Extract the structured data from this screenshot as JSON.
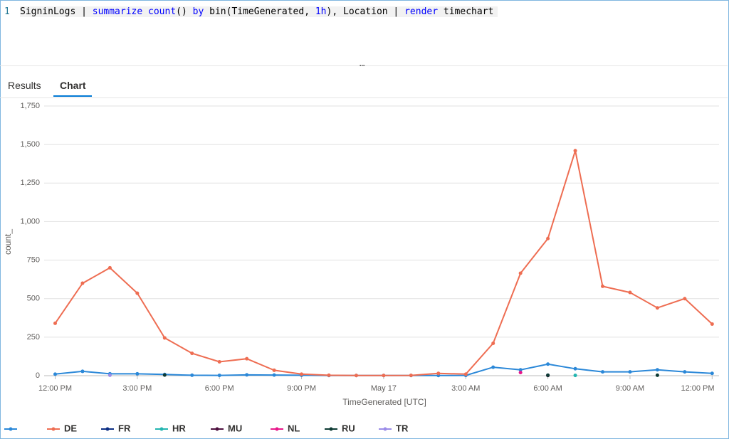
{
  "editor": {
    "line_number": "1",
    "tokens": [
      {
        "text": "SigninLogs | ",
        "color": "#000000"
      },
      {
        "text": "summarize",
        "color": "#0000ff"
      },
      {
        "text": " ",
        "color": "#000000"
      },
      {
        "text": "count",
        "color": "#0000ff"
      },
      {
        "text": "() ",
        "color": "#000000"
      },
      {
        "text": "by",
        "color": "#0000ff"
      },
      {
        "text": " bin(TimeGenerated, ",
        "color": "#000000"
      },
      {
        "text": "1h",
        "color": "#0000ff"
      },
      {
        "text": "), Location | ",
        "color": "#000000"
      },
      {
        "text": "render",
        "color": "#0000ff"
      },
      {
        "text": " timechart",
        "color": "#000000"
      }
    ]
  },
  "tabs": [
    "Results",
    "Chart"
  ],
  "chart_data": {
    "type": "line",
    "x_label": "TimeGenerated [UTC]",
    "y_label": "count_",
    "categories": [
      "12:00 PM",
      null,
      null,
      "3:00 PM",
      null,
      null,
      "6:00 PM",
      null,
      null,
      "9:00 PM",
      null,
      null,
      "May 17",
      null,
      null,
      "3:00 AM",
      null,
      null,
      "6:00 AM",
      null,
      null,
      "9:00 AM",
      null,
      null,
      "12:00 PM"
    ],
    "ylim": [
      0,
      1750
    ],
    "yticks": [
      0,
      250,
      500,
      750,
      {
        "value": 1000,
        "label": "1,000"
      },
      {
        "value": 1250,
        "label": "1,250"
      },
      {
        "value": 1500,
        "label": "1,500"
      },
      {
        "value": 1750,
        "label": "1,750"
      }
    ],
    "grid": true,
    "series": [
      {
        "name": null,
        "color": "#2b88d8",
        "values": [
          10,
          28,
          12,
          12,
          8,
          3,
          2,
          5,
          4,
          3,
          1,
          1,
          1,
          1,
          1,
          2,
          55,
          38,
          75,
          45,
          25,
          25,
          38,
          25,
          15
        ]
      },
      {
        "name": "DE",
        "color": "#ee6d52",
        "values": [
          340,
          600,
          700,
          535,
          245,
          145,
          90,
          110,
          35,
          10,
          3,
          1,
          1,
          2,
          15,
          10,
          210,
          665,
          890,
          1460,
          580,
          540,
          440,
          500,
          335
        ]
      },
      {
        "name": "FR",
        "color": "#0b2e84",
        "values": [
          null,
          null,
          null,
          null,
          null,
          null,
          null,
          null,
          null,
          null,
          null,
          null,
          null,
          null,
          null,
          null,
          null,
          null,
          3,
          null,
          null,
          null,
          null,
          null,
          null
        ]
      },
      {
        "name": "HR",
        "color": "#22b5b0",
        "values": [
          null,
          null,
          null,
          null,
          null,
          null,
          null,
          null,
          null,
          null,
          null,
          null,
          null,
          null,
          null,
          null,
          null,
          null,
          null,
          2,
          null,
          null,
          null,
          null,
          null
        ]
      },
      {
        "name": "MU",
        "color": "#4d0f3e",
        "values": [
          null,
          null,
          null,
          null,
          null,
          null,
          null,
          null,
          null,
          null,
          null,
          null,
          null,
          null,
          null,
          null,
          null,
          null,
          1,
          null,
          null,
          null,
          null,
          null,
          null
        ]
      },
      {
        "name": "NL",
        "color": "#e8178a",
        "values": [
          null,
          null,
          null,
          null,
          null,
          null,
          null,
          null,
          null,
          null,
          null,
          null,
          null,
          null,
          null,
          null,
          null,
          20,
          null,
          null,
          null,
          null,
          null,
          null,
          null
        ]
      },
      {
        "name": "RU",
        "color": "#0d3a33",
        "values": [
          null,
          null,
          null,
          null,
          4,
          null,
          null,
          null,
          null,
          null,
          null,
          null,
          null,
          null,
          null,
          null,
          null,
          null,
          3,
          null,
          null,
          null,
          3,
          null,
          null
        ]
      },
      {
        "name": "TR",
        "color": "#9b8ce8",
        "values": [
          null,
          null,
          3,
          null,
          null,
          null,
          null,
          null,
          null,
          null,
          null,
          null,
          null,
          null,
          null,
          null,
          null,
          null,
          null,
          null,
          null,
          null,
          null,
          null,
          null
        ]
      }
    ]
  }
}
